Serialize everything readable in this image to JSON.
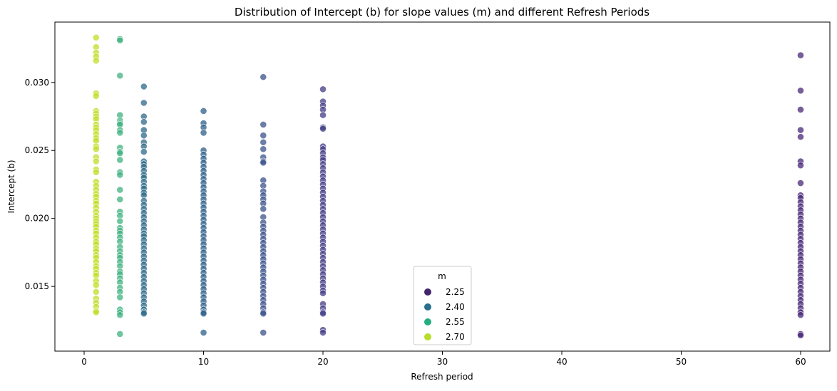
{
  "chart_data": {
    "type": "scatter",
    "title": "Distribution of Intercept (b) for slope values (m) and different Refresh Periods",
    "xlabel": "Refresh period",
    "ylabel": "Intercept (b)",
    "xlim": [
      -2.45,
      62.45
    ],
    "ylim": [
      0.01024,
      0.03444
    ],
    "xticks": [
      "0",
      "10",
      "20",
      "30",
      "40",
      "50",
      "60"
    ],
    "yticks": [
      "0.015",
      "0.020",
      "0.025",
      "0.030"
    ],
    "grid": false,
    "legend": {
      "title": "m",
      "placement": "lower-center",
      "entries": [
        {
          "label": "2.25",
          "color": "#41266e"
        },
        {
          "label": "2.40",
          "color": "#2a6f8e"
        },
        {
          "label": "2.55",
          "color": "#26ad81"
        },
        {
          "label": "2.70",
          "color": "#b8dd2b"
        }
      ]
    },
    "series": [
      {
        "x": 1,
        "color": "#c0de26",
        "values": [
          0.0333,
          0.0326,
          0.0322,
          0.0319,
          0.0316,
          0.0292,
          0.029,
          0.0279,
          0.0277,
          0.0275,
          0.0273,
          0.0269,
          0.0267,
          0.0265,
          0.0262,
          0.0259,
          0.0257,
          0.0253,
          0.0251,
          0.0245,
          0.0242,
          0.0236,
          0.0234,
          0.0227,
          0.0224,
          0.0221,
          0.0218,
          0.0216,
          0.0213,
          0.0211,
          0.0208,
          0.0205,
          0.0202,
          0.02,
          0.0198,
          0.0196,
          0.0194,
          0.0191,
          0.0189,
          0.0186,
          0.0183,
          0.0181,
          0.0178,
          0.0176,
          0.0173,
          0.0171,
          0.0168,
          0.0165,
          0.0163,
          0.016,
          0.0158,
          0.0154,
          0.0151,
          0.0146,
          0.0141,
          0.0138,
          0.0135,
          0.0132,
          0.0131
        ]
      },
      {
        "x": 3,
        "color": "#3fb180",
        "values": [
          0.0332,
          0.0331,
          0.0305,
          0.0276,
          0.0272,
          0.027,
          0.0269,
          0.0265,
          0.0263,
          0.0252,
          0.0249,
          0.0248,
          0.0243,
          0.0234,
          0.0232,
          0.0221,
          0.0214,
          0.0205,
          0.0202,
          0.0198,
          0.0193,
          0.0191,
          0.0189,
          0.0186,
          0.0183,
          0.0179,
          0.0176,
          0.0173,
          0.0171,
          0.0168,
          0.0165,
          0.0161,
          0.0159,
          0.0156,
          0.0153,
          0.0149,
          0.0146,
          0.0142,
          0.0133,
          0.0131,
          0.0129,
          0.0115
        ]
      },
      {
        "x": 5,
        "color": "#2d6a8a",
        "values": [
          0.0297,
          0.0285,
          0.0275,
          0.0271,
          0.0265,
          0.0261,
          0.0256,
          0.0253,
          0.0249,
          0.0242,
          0.024,
          0.0238,
          0.0235,
          0.0232,
          0.023,
          0.0227,
          0.0224,
          0.0222,
          0.0219,
          0.0217,
          0.0213,
          0.021,
          0.0207,
          0.0204,
          0.0201,
          0.0198,
          0.0195,
          0.0192,
          0.0189,
          0.0187,
          0.0184,
          0.0181,
          0.0178,
          0.0175,
          0.0172,
          0.0169,
          0.0166,
          0.0163,
          0.016,
          0.0157,
          0.0154,
          0.0151,
          0.0148,
          0.0145,
          0.0142,
          0.0139,
          0.0136,
          0.0133,
          0.0131,
          0.013
        ]
      },
      {
        "x": 10,
        "color": "#2d5f8a",
        "values": [
          0.0279,
          0.027,
          0.0267,
          0.0263,
          0.025,
          0.0247,
          0.0244,
          0.0241,
          0.0238,
          0.0235,
          0.0232,
          0.0229,
          0.0226,
          0.0223,
          0.022,
          0.0217,
          0.0214,
          0.0211,
          0.0208,
          0.0205,
          0.0202,
          0.0199,
          0.0196,
          0.0193,
          0.019,
          0.0187,
          0.0184,
          0.0181,
          0.0178,
          0.0175,
          0.0172,
          0.0169,
          0.0166,
          0.0163,
          0.016,
          0.0157,
          0.0154,
          0.0151,
          0.0148,
          0.0145,
          0.0142,
          0.0139,
          0.0136,
          0.0133,
          0.0131,
          0.013,
          0.0116
        ]
      },
      {
        "x": 15,
        "color": "#3b528b",
        "values": [
          0.0304,
          0.0269,
          0.0261,
          0.0256,
          0.0251,
          0.0245,
          0.0242,
          0.0241,
          0.0228,
          0.0224,
          0.022,
          0.0217,
          0.0214,
          0.0211,
          0.0207,
          0.0201,
          0.0197,
          0.0194,
          0.0191,
          0.0188,
          0.0185,
          0.0182,
          0.0179,
          0.0176,
          0.0173,
          0.017,
          0.0167,
          0.0164,
          0.0161,
          0.0158,
          0.0155,
          0.0152,
          0.0149,
          0.0146,
          0.0143,
          0.014,
          0.0137,
          0.0134,
          0.0131,
          0.013,
          0.0116
        ]
      },
      {
        "x": 20,
        "color": "#433e85",
        "values": [
          0.0295,
          0.0286,
          0.0283,
          0.028,
          0.0276,
          0.0267,
          0.0266,
          0.0253,
          0.0251,
          0.0248,
          0.0245,
          0.0243,
          0.024,
          0.0237,
          0.0234,
          0.0231,
          0.0228,
          0.0225,
          0.0222,
          0.0219,
          0.0216,
          0.0213,
          0.021,
          0.0207,
          0.0204,
          0.0201,
          0.0198,
          0.0195,
          0.0192,
          0.0189,
          0.0186,
          0.0183,
          0.018,
          0.0177,
          0.0174,
          0.0171,
          0.0168,
          0.0165,
          0.0162,
          0.0159,
          0.0156,
          0.0153,
          0.015,
          0.0147,
          0.0145,
          0.0137,
          0.0134,
          0.0131,
          0.013,
          0.0118,
          0.0116
        ]
      },
      {
        "x": 60,
        "color": "#482878",
        "values": [
          0.032,
          0.0294,
          0.028,
          0.0265,
          0.026,
          0.0242,
          0.0239,
          0.0226,
          0.0217,
          0.0215,
          0.0212,
          0.0209,
          0.0206,
          0.0203,
          0.02,
          0.0197,
          0.0194,
          0.0191,
          0.0188,
          0.0185,
          0.0182,
          0.0179,
          0.0176,
          0.0173,
          0.017,
          0.0167,
          0.0164,
          0.0161,
          0.0158,
          0.0155,
          0.0152,
          0.0149,
          0.0146,
          0.0143,
          0.014,
          0.0137,
          0.0134,
          0.0131,
          0.0129,
          0.0115,
          0.0114
        ]
      }
    ]
  }
}
